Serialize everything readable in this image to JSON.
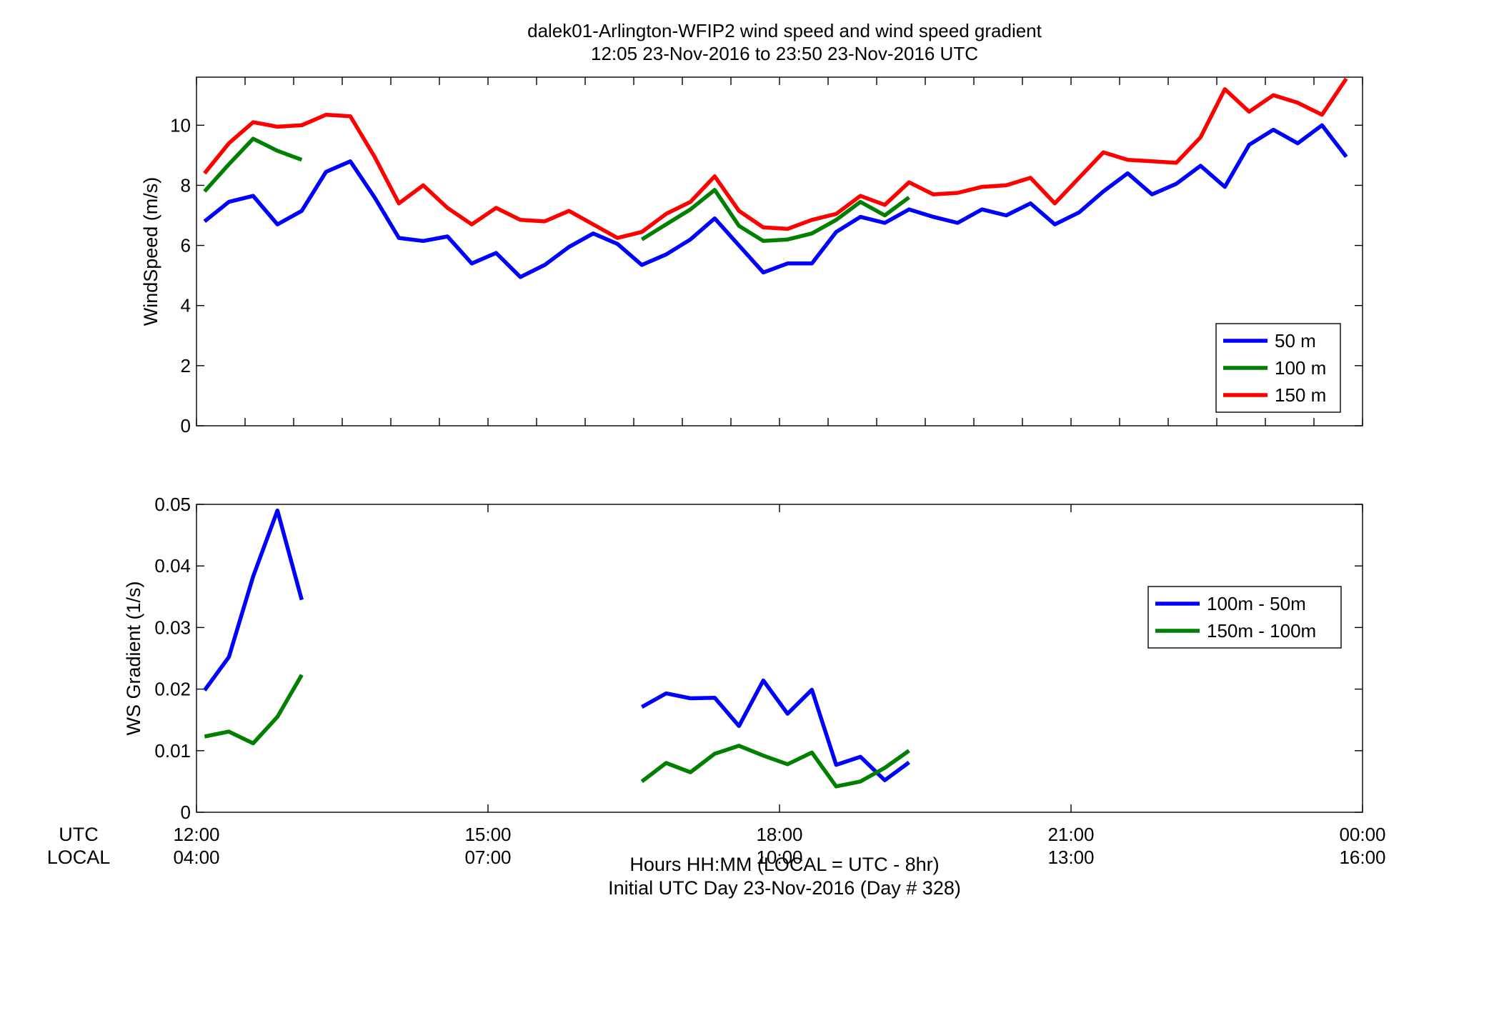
{
  "figure": {
    "title_line1": "dalek01-Arlington-WFIP2  wind speed and wind speed gradient",
    "title_line2": "12:05 23-Nov-2016 to 23:50 23-Nov-2016  UTC",
    "xlabel_line1": "Hours HH:MM  (LOCAL = UTC - 8hr)",
    "xlabel_line2": "Initial UTC Day 23-Nov-2016 (Day # 328)",
    "utc_row_label": "UTC",
    "local_row_label": "LOCAL"
  },
  "chart_data": [
    {
      "type": "line",
      "name": "top",
      "ylabel": "WindSpeed (m/s)",
      "xlim": [
        12.0,
        24.0
      ],
      "ylim": [
        0,
        11.6
      ],
      "yticks": [
        0,
        2,
        4,
        6,
        8,
        10
      ],
      "ytick_labels": [
        "0",
        "2",
        "4",
        "6",
        "8",
        "10"
      ],
      "x_minor_ticks": [
        12.0,
        12.5,
        13.0,
        13.5,
        14.0,
        14.5,
        15.0,
        15.5,
        16.0,
        16.5,
        17.0,
        17.5,
        18.0,
        18.5,
        19.0,
        19.5,
        20.0,
        20.5,
        21.0,
        21.5,
        22.0,
        22.5,
        23.0,
        23.5,
        24.0
      ],
      "legend": "bottom-right",
      "grid": false,
      "series": [
        {
          "name": "50 m",
          "color": "#0000ff",
          "x": [
            12.083,
            12.333,
            12.583,
            12.833,
            13.083,
            13.333,
            13.583,
            13.833,
            14.083,
            14.333,
            14.583,
            14.833,
            15.083,
            15.333,
            15.583,
            15.833,
            16.083,
            16.333,
            16.583,
            16.833,
            17.083,
            17.333,
            17.583,
            17.833,
            18.083,
            18.333,
            18.583,
            18.833,
            19.083,
            19.333,
            19.583,
            19.833,
            20.083,
            20.333,
            20.583,
            20.833,
            21.083,
            21.333,
            21.583,
            21.833,
            22.083,
            22.333,
            22.583,
            22.833,
            23.083,
            23.333,
            23.583,
            23.833
          ],
          "y": [
            6.8,
            7.45,
            7.65,
            6.7,
            7.15,
            8.45,
            8.8,
            7.6,
            6.25,
            6.15,
            6.3,
            5.4,
            5.75,
            4.95,
            5.35,
            5.95,
            6.4,
            6.05,
            5.35,
            5.7,
            6.2,
            6.9,
            6.0,
            5.1,
            5.4,
            5.4,
            6.45,
            6.95,
            6.75,
            7.2,
            6.95,
            6.75,
            7.2,
            7.0,
            7.4,
            6.7,
            7.1,
            7.8,
            8.4,
            7.7,
            8.05,
            8.65,
            7.95,
            9.35,
            9.85,
            9.4,
            10.0,
            8.95
          ]
        },
        {
          "name": "100 m",
          "color": "#007f00",
          "segments": [
            {
              "x": [
                12.083,
                12.333,
                12.583,
                12.833,
                13.083
              ],
              "y": [
                7.8,
                8.7,
                9.55,
                9.15,
                8.85
              ]
            },
            {
              "x": [
                16.583,
                16.833,
                17.083,
                17.333,
                17.583,
                17.833,
                18.083,
                18.333,
                18.583,
                18.833,
                19.083,
                19.333
              ],
              "y": [
                6.2,
                6.7,
                7.2,
                7.85,
                6.65,
                6.15,
                6.2,
                6.4,
                6.85,
                7.45,
                7.0,
                7.6
              ]
            }
          ]
        },
        {
          "name": "150 m",
          "color": "#ff0000",
          "x": [
            12.083,
            12.333,
            12.583,
            12.833,
            13.083,
            13.333,
            13.583,
            13.833,
            14.083,
            14.333,
            14.583,
            14.833,
            15.083,
            15.333,
            15.583,
            15.833,
            16.083,
            16.333,
            16.583,
            16.833,
            17.083,
            17.333,
            17.583,
            17.833,
            18.083,
            18.333,
            18.583,
            18.833,
            19.083,
            19.333,
            19.583,
            19.833,
            20.083,
            20.333,
            20.583,
            20.833,
            21.083,
            21.333,
            21.583,
            21.833,
            22.083,
            22.333,
            22.583,
            22.833,
            23.083,
            23.333,
            23.583,
            23.833
          ],
          "y": [
            8.4,
            9.4,
            10.1,
            9.95,
            10.0,
            10.35,
            10.3,
            8.95,
            7.4,
            8.0,
            7.25,
            6.7,
            7.25,
            6.85,
            6.8,
            7.15,
            6.7,
            6.25,
            6.45,
            7.05,
            7.45,
            8.3,
            7.15,
            6.6,
            6.55,
            6.85,
            7.05,
            7.65,
            7.35,
            8.1,
            7.7,
            7.75,
            7.95,
            8.0,
            8.25,
            7.4,
            8.25,
            9.1,
            8.85,
            8.8,
            8.75,
            9.6,
            11.2,
            10.45,
            11.0,
            10.75,
            10.35,
            11.55
          ]
        }
      ]
    },
    {
      "type": "line",
      "name": "bottom",
      "ylabel": "WS Gradient (1/s)",
      "xlim": [
        12.0,
        24.0
      ],
      "ylim": [
        0,
        0.05
      ],
      "yticks": [
        0,
        0.01,
        0.02,
        0.03,
        0.04,
        0.05
      ],
      "ytick_labels": [
        "0",
        "0.01",
        "0.02",
        "0.03",
        "0.04",
        "0.05"
      ],
      "xticks": [
        12,
        15,
        18,
        21,
        24
      ],
      "xtick_labels_utc": [
        "12:00",
        "15:00",
        "18:00",
        "21:00",
        "00:00"
      ],
      "xtick_labels_local": [
        "04:00",
        "07:00",
        "10:00",
        "13:00",
        "16:00"
      ],
      "legend": "top-right",
      "grid": false,
      "series": [
        {
          "name": "100m - 50m",
          "color": "#0000ff",
          "segments": [
            {
              "x": [
                12.083,
                12.333,
                12.583,
                12.833,
                13.083
              ],
              "y": [
                0.0198,
                0.0252,
                0.0383,
                0.049,
                0.0345
              ]
            },
            {
              "x": [
                16.583,
                16.833,
                17.083,
                17.333,
                17.583,
                17.833,
                18.083,
                18.333,
                18.583,
                18.833,
                19.083,
                19.333
              ],
              "y": [
                0.0171,
                0.0193,
                0.0185,
                0.0186,
                0.014,
                0.0214,
                0.016,
                0.0199,
                0.0077,
                0.009,
                0.0052,
                0.0081
              ]
            }
          ]
        },
        {
          "name": "150m - 100m",
          "color": "#007f00",
          "segments": [
            {
              "x": [
                12.083,
                12.333,
                12.583,
                12.833,
                13.083
              ],
              "y": [
                0.0123,
                0.0131,
                0.0112,
                0.0155,
                0.0223
              ]
            },
            {
              "x": [
                16.583,
                16.833,
                17.083,
                17.333,
                17.583,
                17.833,
                18.083,
                18.333,
                18.583,
                18.833,
                19.083,
                19.333
              ],
              "y": [
                0.005,
                0.008,
                0.0065,
                0.0095,
                0.0108,
                0.0092,
                0.0078,
                0.0097,
                0.0042,
                0.005,
                0.0072,
                0.01
              ]
            }
          ]
        }
      ]
    }
  ]
}
